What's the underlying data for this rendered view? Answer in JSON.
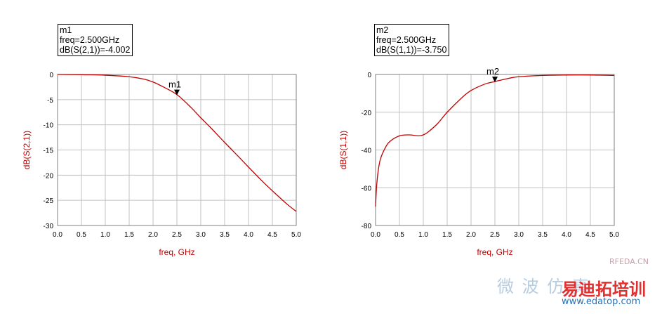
{
  "colors": {
    "curve": "#c00000",
    "axis_label": "#c00000",
    "grid": "#c0c0c0",
    "frame": "#808080",
    "tick_text": "#000000",
    "watermark_red": "#e03030",
    "watermark_blue": "#2a6fb0"
  },
  "chart_data": [
    {
      "type": "line",
      "xlabel": "freq, GHz",
      "ylabel": "dB(S(2,1))",
      "xlim": [
        0.0,
        5.0
      ],
      "ylim": [
        -30,
        0
      ],
      "xticks": [
        "0.0",
        "0.5",
        "1.0",
        "1.5",
        "2.0",
        "2.5",
        "3.0",
        "3.5",
        "4.0",
        "4.5",
        "5.0"
      ],
      "yticks": [
        "0",
        "-5",
        "-10",
        "-15",
        "-20",
        "-25",
        "-30"
      ],
      "grid": true,
      "series": [
        {
          "x": [
            0.0,
            0.5,
            1.0,
            1.5,
            1.8,
            2.0,
            2.2,
            2.5,
            2.8,
            3.0,
            3.2,
            3.5,
            3.8,
            4.0,
            4.3,
            4.5,
            4.8,
            5.0
          ],
          "values": [
            0.0,
            -0.05,
            -0.15,
            -0.45,
            -0.9,
            -1.5,
            -2.4,
            -4.0,
            -6.6,
            -8.6,
            -10.5,
            -13.5,
            -16.4,
            -18.4,
            -21.3,
            -23.1,
            -25.7,
            -27.2
          ]
        }
      ],
      "marker": {
        "name": "m1",
        "lines": [
          "m1",
          "freq=2.500GHz",
          "dB(S(2,1))=-4.002"
        ],
        "x": 2.5,
        "y": -4.002
      }
    },
    {
      "type": "line",
      "xlabel": "freq, GHz",
      "ylabel": "dB(S(1,1))",
      "xlim": [
        0.0,
        5.0
      ],
      "ylim": [
        -80,
        0
      ],
      "xticks": [
        "0.0",
        "0.5",
        "1.0",
        "1.5",
        "2.0",
        "2.5",
        "3.0",
        "3.5",
        "4.0",
        "4.5",
        "5.0"
      ],
      "yticks": [
        "0",
        "-20",
        "-40",
        "-60",
        "-80"
      ],
      "grid": true,
      "series": [
        {
          "x": [
            0.0,
            0.02,
            0.05,
            0.1,
            0.2,
            0.3,
            0.5,
            0.7,
            0.9,
            1.0,
            1.1,
            1.3,
            1.5,
            1.8,
            2.0,
            2.3,
            2.5,
            2.8,
            3.0,
            3.5,
            4.0,
            4.5,
            5.0
          ],
          "values": [
            -70,
            -60,
            -52,
            -45,
            -39,
            -35.5,
            -32.5,
            -32.0,
            -32.5,
            -32.0,
            -30.5,
            -26.0,
            -20.0,
            -12.5,
            -8.5,
            -5.0,
            -3.75,
            -2.0,
            -1.2,
            -0.5,
            -0.3,
            -0.3,
            -0.5
          ]
        }
      ],
      "marker": {
        "name": "m2",
        "lines": [
          "m2",
          "freq=2.500GHz",
          "dB(S(1,1))=-3.750"
        ],
        "x": 2.5,
        "y": -3.75
      }
    }
  ],
  "watermark": {
    "site_tag": "RFEDA.CN",
    "cn_text_1": "微 波 仿 真",
    "cn_text_2": "易迪拓培训",
    "url": "www.edatop.com"
  }
}
